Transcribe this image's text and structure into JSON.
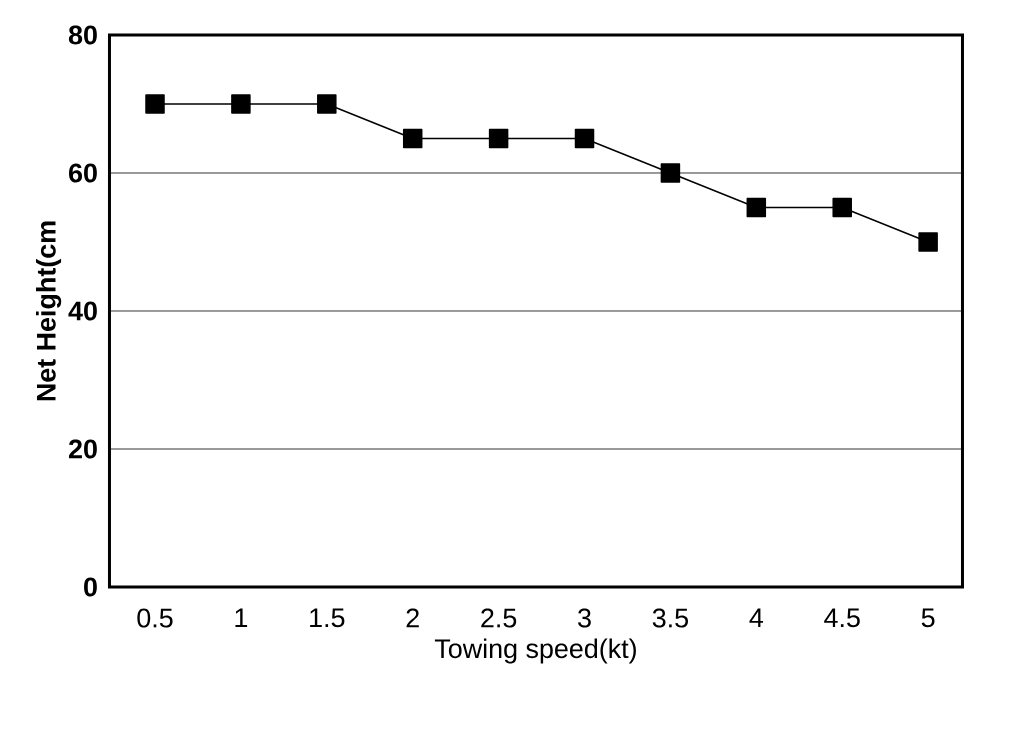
{
  "chart_data": {
    "type": "line",
    "xlabel": "Towing speed(kt)",
    "ylabel": "Net Height(cm",
    "categories": [
      "0.5",
      "1",
      "1.5",
      "2",
      "2.5",
      "3",
      "3.5",
      "4",
      "4.5",
      "5"
    ],
    "values": [
      70,
      70,
      70,
      65,
      65,
      65,
      60,
      55,
      55,
      50
    ],
    "color": "#000000",
    "marker": "square",
    "line_style": "solid",
    "ylim": [
      0,
      80
    ],
    "yticks": [
      0,
      20,
      40,
      60,
      80
    ],
    "grid": "y"
  }
}
